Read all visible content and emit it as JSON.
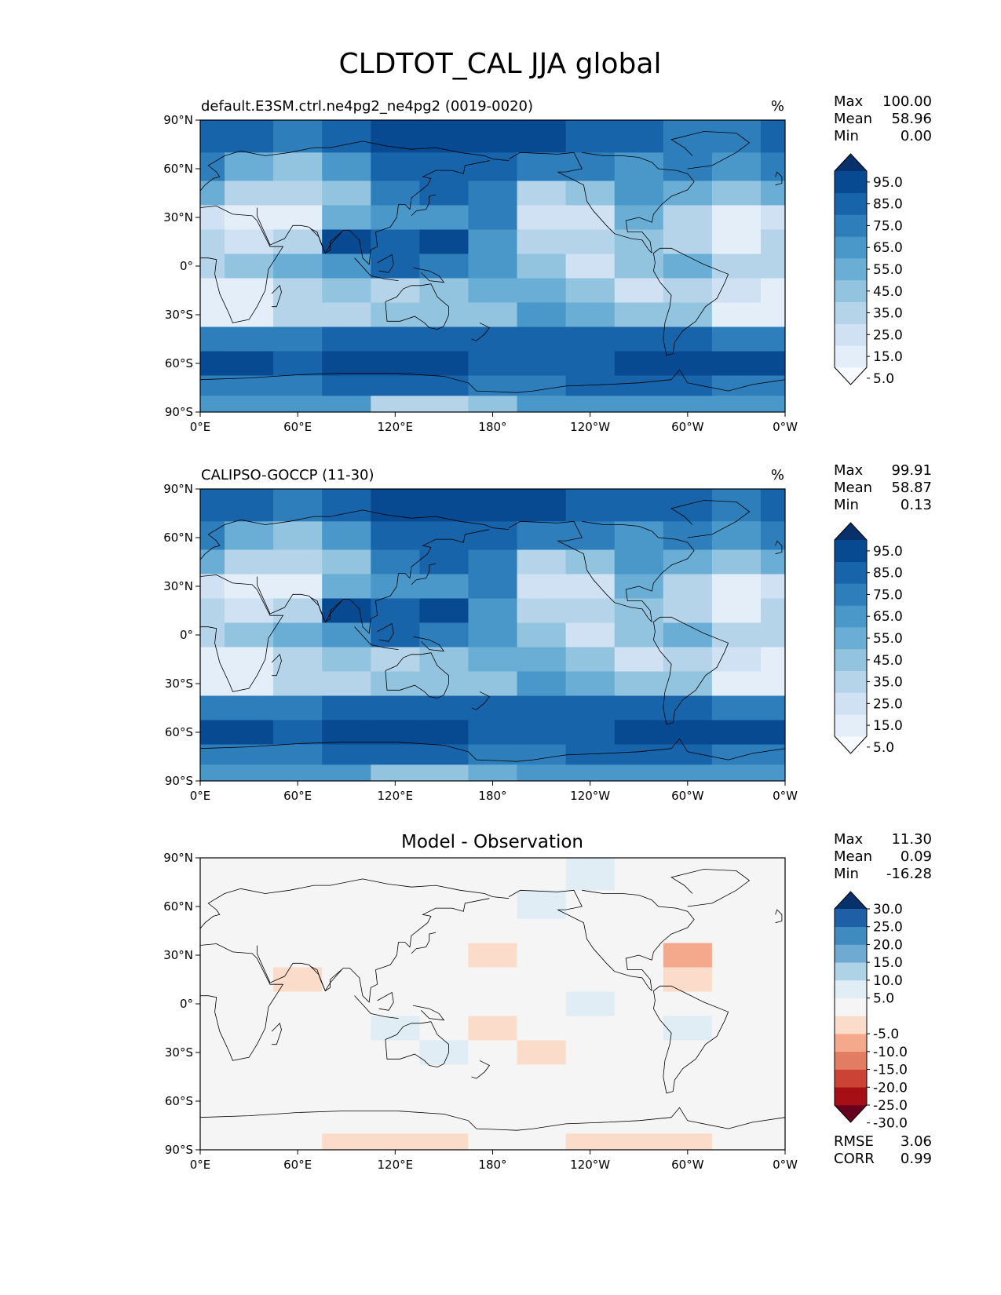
{
  "figure": {
    "title": "CLDTOT_CAL JJA global"
  },
  "colors": {
    "blues": [
      "#f7fbff",
      "#e3eef9",
      "#cfe1f2",
      "#b5d4e9",
      "#93c4df",
      "#6aaed6",
      "#4a98c9",
      "#2e7ebc",
      "#1764ab",
      "#084a91",
      "#08306b"
    ],
    "diff": [
      "#67001f",
      "#a50f15",
      "#cb4335",
      "#e27d64",
      "#f5a98c",
      "#fbdcca",
      "#f5f5f5",
      "#e0edf5",
      "#aed3e6",
      "#6eaad1",
      "#3f8bc0",
      "#1e5fa6",
      "#08306b"
    ],
    "land_line": "#000000"
  },
  "chart_data": [
    {
      "type": "heatmap",
      "panel": "test",
      "title": "default.E3SM.ctrl.ne4pg2_ne4pg2 (0019-0020)",
      "units": "%",
      "stats": {
        "max_label": "Max",
        "max": "100.00",
        "mean_label": "Mean",
        "mean": "58.96",
        "min_label": "Min",
        "min": "0.00"
      },
      "xlim": [
        0,
        360
      ],
      "ylim": [
        -90,
        90
      ],
      "xticks": [
        "0°E",
        "60°E",
        "120°E",
        "180°",
        "120°W",
        "60°W",
        "0°W"
      ],
      "yticks": [
        "90°N",
        "60°N",
        "30°N",
        "0°",
        "30°S",
        "60°S",
        "90°S"
      ],
      "colorbar": {
        "ticks": [
          "95.0",
          "85.0",
          "75.0",
          "65.0",
          "55.0",
          "45.0",
          "35.0",
          "25.0",
          "15.0",
          "5.0"
        ],
        "extend": "both"
      },
      "lon": [
        0,
        30,
        60,
        90,
        120,
        150,
        180,
        210,
        240,
        270,
        300,
        330,
        360
      ],
      "lat": [
        80,
        60,
        45,
        30,
        15,
        0,
        -15,
        -30,
        -45,
        -60,
        -75,
        -85
      ],
      "values": [
        [
          85,
          80,
          78,
          82,
          90,
          92,
          95,
          92,
          88,
          80,
          75,
          78,
          85
        ],
        [
          70,
          50,
          45,
          60,
          85,
          88,
          85,
          70,
          75,
          65,
          70,
          65,
          70
        ],
        [
          55,
          30,
          35,
          45,
          70,
          80,
          75,
          30,
          40,
          60,
          55,
          40,
          55
        ],
        [
          25,
          10,
          15,
          55,
          60,
          65,
          70,
          20,
          25,
          50,
          30,
          10,
          25
        ],
        [
          35,
          20,
          30,
          90,
          85,
          90,
          60,
          35,
          30,
          45,
          35,
          15,
          35
        ],
        [
          35,
          40,
          55,
          65,
          80,
          70,
          60,
          40,
          20,
          40,
          55,
          35,
          35
        ],
        [
          10,
          15,
          35,
          45,
          35,
          45,
          55,
          55,
          45,
          25,
          35,
          25,
          10
        ],
        [
          15,
          15,
          35,
          35,
          40,
          45,
          45,
          60,
          55,
          45,
          40,
          15,
          15
        ],
        [
          75,
          75,
          70,
          80,
          80,
          85,
          80,
          80,
          80,
          80,
          80,
          75,
          75
        ],
        [
          92,
          90,
          85,
          90,
          92,
          92,
          88,
          85,
          85,
          92,
          90,
          92,
          92
        ],
        [
          75,
          75,
          75,
          80,
          85,
          80,
          70,
          75,
          80,
          80,
          80,
          75,
          75
        ],
        [
          60,
          60,
          60,
          60,
          35,
          30,
          40,
          60,
          60,
          60,
          60,
          60,
          60
        ]
      ]
    },
    {
      "type": "heatmap",
      "panel": "reference",
      "title": "CALIPSO-GOCCP (11-30)",
      "units": "%",
      "stats": {
        "max_label": "Max",
        "max": "99.91",
        "mean_label": "Mean",
        "mean": "58.87",
        "min_label": "Min",
        "min": "0.13"
      },
      "xlim": [
        0,
        360
      ],
      "ylim": [
        -90,
        90
      ],
      "xticks": [
        "0°E",
        "60°E",
        "120°E",
        "180°",
        "120°W",
        "60°W",
        "0°W"
      ],
      "yticks": [
        "90°N",
        "60°N",
        "30°N",
        "0°",
        "30°S",
        "60°S",
        "90°S"
      ],
      "colorbar": {
        "ticks": [
          "95.0",
          "85.0",
          "75.0",
          "65.0",
          "55.0",
          "45.0",
          "35.0",
          "25.0",
          "15.0",
          "5.0"
        ],
        "extend": "both"
      },
      "lon": [
        0,
        30,
        60,
        90,
        120,
        150,
        180,
        210,
        240,
        270,
        300,
        330,
        360
      ],
      "lat": [
        80,
        60,
        45,
        30,
        15,
        0,
        -15,
        -30,
        -45,
        -60,
        -75,
        -85
      ],
      "values": [
        [
          85,
          80,
          78,
          82,
          90,
          92,
          95,
          92,
          88,
          80,
          80,
          78,
          85
        ],
        [
          70,
          50,
          45,
          60,
          85,
          88,
          85,
          70,
          75,
          65,
          75,
          65,
          70
        ],
        [
          55,
          30,
          35,
          45,
          70,
          80,
          75,
          30,
          40,
          60,
          55,
          40,
          55
        ],
        [
          25,
          10,
          15,
          55,
          60,
          65,
          70,
          20,
          25,
          50,
          30,
          10,
          25
        ],
        [
          35,
          20,
          30,
          90,
          85,
          90,
          60,
          35,
          30,
          45,
          35,
          15,
          35
        ],
        [
          35,
          40,
          55,
          65,
          80,
          70,
          60,
          40,
          20,
          40,
          55,
          35,
          35
        ],
        [
          10,
          15,
          35,
          45,
          35,
          45,
          55,
          55,
          45,
          25,
          35,
          25,
          10
        ],
        [
          15,
          15,
          35,
          35,
          40,
          45,
          45,
          60,
          55,
          45,
          40,
          15,
          15
        ],
        [
          75,
          75,
          70,
          80,
          80,
          85,
          80,
          80,
          80,
          80,
          80,
          75,
          75
        ],
        [
          92,
          90,
          85,
          90,
          92,
          92,
          88,
          85,
          85,
          92,
          90,
          92,
          92
        ],
        [
          75,
          75,
          75,
          80,
          85,
          80,
          70,
          75,
          80,
          80,
          80,
          75,
          75
        ],
        [
          60,
          60,
          60,
          60,
          45,
          40,
          50,
          60,
          60,
          60,
          60,
          60,
          60
        ]
      ]
    },
    {
      "type": "heatmap",
      "panel": "difference",
      "title": "Model - Observation",
      "stats": {
        "max_label": "Max",
        "max": "11.30",
        "mean_label": "Mean",
        "mean": "0.09",
        "min_label": "Min",
        "min": "-16.28"
      },
      "metrics": {
        "rmse_label": "RMSE",
        "rmse": "3.06",
        "corr_label": "CORR",
        "corr": "0.99"
      },
      "xlim": [
        0,
        360
      ],
      "ylim": [
        -90,
        90
      ],
      "xticks": [
        "0°E",
        "60°E",
        "120°E",
        "180°",
        "120°W",
        "60°W",
        "0°W"
      ],
      "yticks": [
        "90°N",
        "60°N",
        "30°N",
        "0°",
        "30°S",
        "60°S",
        "90°S"
      ],
      "colorbar": {
        "ticks": [
          "30.0",
          "25.0",
          "20.0",
          "15.0",
          "10.0",
          "5.0",
          "-5.0",
          "-10.0",
          "-15.0",
          "-20.0",
          "-25.0",
          "-30.0"
        ],
        "extend": "both"
      },
      "lon": [
        0,
        30,
        60,
        90,
        120,
        150,
        180,
        210,
        240,
        270,
        300,
        330,
        360
      ],
      "lat": [
        80,
        60,
        45,
        30,
        15,
        0,
        -15,
        -30,
        -45,
        -60,
        -75,
        -85
      ],
      "values": [
        [
          0,
          0,
          0,
          0,
          0,
          0,
          0,
          0,
          6,
          0,
          0,
          0,
          0
        ],
        [
          0,
          0,
          0,
          0,
          0,
          0,
          0,
          6,
          0,
          0,
          0,
          0,
          0
        ],
        [
          0,
          0,
          0,
          0,
          0,
          0,
          0,
          0,
          0,
          0,
          0,
          0,
          0
        ],
        [
          0,
          0,
          0,
          0,
          0,
          0,
          -7,
          0,
          0,
          0,
          -12,
          0,
          0
        ],
        [
          0,
          0,
          -6,
          0,
          0,
          0,
          0,
          0,
          0,
          0,
          -8,
          0,
          0
        ],
        [
          0,
          0,
          0,
          0,
          0,
          0,
          0,
          0,
          8,
          0,
          0,
          0,
          0
        ],
        [
          0,
          0,
          0,
          0,
          6,
          0,
          -7,
          0,
          0,
          0,
          6,
          0,
          0
        ],
        [
          0,
          0,
          0,
          0,
          0,
          6,
          0,
          -7,
          0,
          0,
          0,
          0,
          0
        ],
        [
          0,
          0,
          0,
          0,
          0,
          0,
          0,
          0,
          0,
          0,
          0,
          0,
          0
        ],
        [
          0,
          0,
          0,
          0,
          0,
          0,
          0,
          0,
          0,
          0,
          0,
          0,
          0
        ],
        [
          0,
          0,
          0,
          0,
          0,
          0,
          0,
          0,
          0,
          0,
          0,
          0,
          0
        ],
        [
          0,
          0,
          0,
          -6,
          -6,
          -6,
          0,
          0,
          -6,
          -6,
          -6,
          0,
          0
        ]
      ]
    }
  ]
}
